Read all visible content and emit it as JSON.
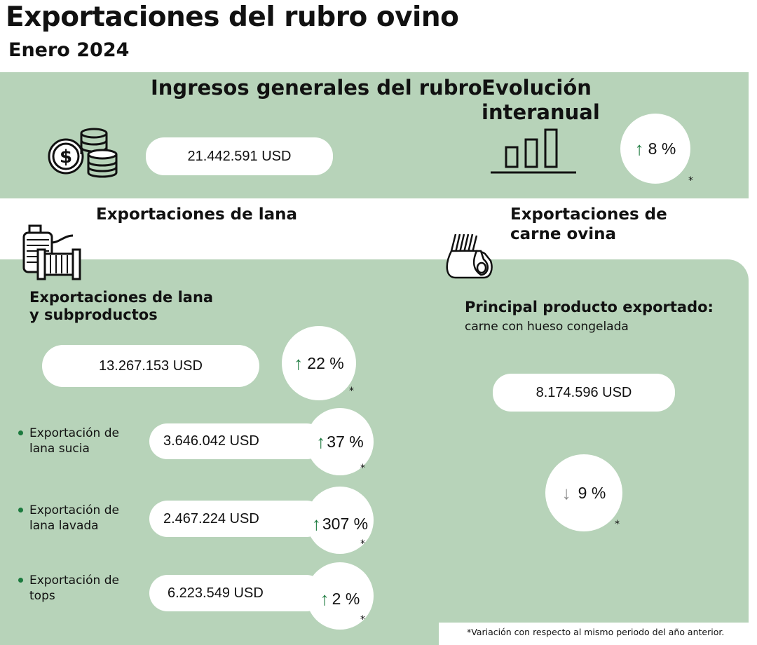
{
  "title": "Exportaciones del rubro ovino",
  "subtitle": "Enero 2024",
  "colors": {
    "background_green": "#b7d3b9",
    "up_arrow": "#1c7a3e",
    "down_arrow": "#888888"
  },
  "general": {
    "heading": "Ingresos generales del rubro",
    "value": "21.442.591 USD",
    "icon": "coins-dollar-icon"
  },
  "evolution": {
    "heading": "Evolución interanual",
    "direction": "up",
    "arrow": "↑",
    "change": "8 %",
    "asterisk": "*",
    "icon": "bar-chart-icon"
  },
  "wool": {
    "heading": "Exportaciones de lana",
    "icon": "wool-spool-icon",
    "sub_heading": "Exportaciones de lana y subproductos",
    "total": {
      "value": "13.267.153 USD",
      "arrow": "↑",
      "change": "22 %",
      "asterisk": "*"
    },
    "items": [
      {
        "label": "Exportación de lana sucia",
        "value": "3.646.042 USD",
        "arrow": "↑",
        "change": "37 %",
        "asterisk": "*"
      },
      {
        "label": "Exportación de lana lavada",
        "value": "2.467.224 USD",
        "arrow": "↑",
        "change": "307 %",
        "asterisk": "*"
      },
      {
        "label": "Exportación de tops",
        "value": "6.223.549 USD",
        "arrow": "↑",
        "change": "2 %",
        "asterisk": "*"
      }
    ]
  },
  "meat": {
    "heading": "Exportaciones de carne ovina",
    "icon": "lamb-rack-icon",
    "main_product_label": "Principal producto exportado:",
    "main_product": "carne con hueso congelada",
    "value": "8.174.596 USD",
    "arrow": "↓",
    "change": "9 %",
    "asterisk": "*"
  },
  "footnote": "*Variación con respecto al mismo periodo del año anterior."
}
